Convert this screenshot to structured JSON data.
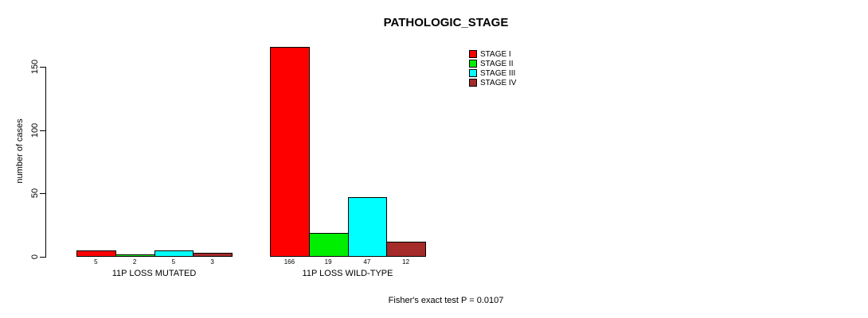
{
  "title": "PATHOLOGIC_STAGE",
  "footer": "Fisher's exact test P = 0.0107",
  "chart_data": {
    "type": "bar",
    "grouped": true,
    "title": "PATHOLOGIC_STAGE",
    "xlabel": "",
    "ylabel": "number of cases",
    "categories": [
      "11P LOSS MUTATED",
      "11P LOSS WILD-TYPE"
    ],
    "series": [
      {
        "name": "STAGE I",
        "color": "#FF0000",
        "values": [
          5,
          166
        ]
      },
      {
        "name": "STAGE II",
        "color": "#00EE00",
        "values": [
          2,
          19
        ]
      },
      {
        "name": "STAGE III",
        "color": "#00FFFF",
        "values": [
          5,
          47
        ]
      },
      {
        "name": "STAGE IV",
        "color": "#A52A2A",
        "values": [
          3,
          12
        ]
      }
    ],
    "bar_value_labels": [
      [
        "5",
        "2",
        "5",
        "3"
      ],
      [
        "166",
        "19",
        "47",
        "12"
      ]
    ],
    "yticks": [
      0,
      50,
      100,
      150
    ],
    "ylim": [
      0,
      166
    ],
    "grid": false,
    "legend_position": "top-right",
    "annotation": "Fisher's exact test P = 0.0107"
  }
}
